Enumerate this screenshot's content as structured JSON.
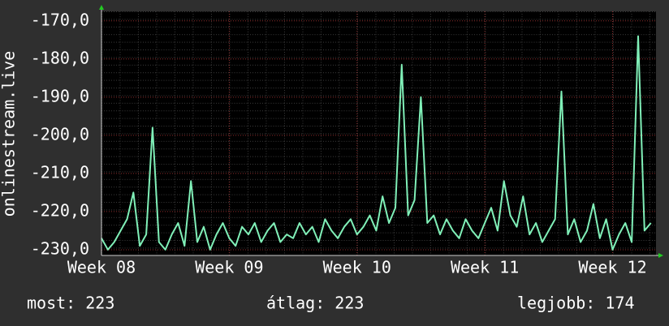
{
  "chart_data": {
    "type": "line",
    "ylabel": "onlinestream.live",
    "x": [
      8.0,
      8.05,
      8.1,
      8.15,
      8.2,
      8.25,
      8.3,
      8.35,
      8.4,
      8.45,
      8.5,
      8.55,
      8.6,
      8.65,
      8.7,
      8.75,
      8.8,
      8.85,
      8.9,
      8.95,
      9.0,
      9.05,
      9.1,
      9.15,
      9.2,
      9.25,
      9.3,
      9.35,
      9.4,
      9.45,
      9.5,
      9.55,
      9.6,
      9.65,
      9.7,
      9.75,
      9.8,
      9.85,
      9.9,
      9.95,
      10.0,
      10.05,
      10.1,
      10.15,
      10.2,
      10.25,
      10.3,
      10.35,
      10.4,
      10.45,
      10.5,
      10.55,
      10.6,
      10.65,
      10.7,
      10.75,
      10.8,
      10.85,
      10.9,
      10.95,
      11.0,
      11.05,
      11.1,
      11.15,
      11.2,
      11.25,
      11.3,
      11.35,
      11.4,
      11.45,
      11.5,
      11.55,
      11.6,
      11.65,
      11.7,
      11.75,
      11.8,
      11.85,
      11.9,
      11.95,
      12.0,
      12.05,
      12.1,
      12.15,
      12.2,
      12.25,
      12.3
    ],
    "series": [
      {
        "color": "#80f0b8",
        "values": [
          -227,
          -230,
          -228,
          -225,
          -222,
          -215,
          -229,
          -226,
          -198,
          -228,
          -230,
          -226,
          -223,
          -229,
          -212,
          -228,
          -224,
          -230,
          -226,
          -223,
          -227,
          -229,
          -224,
          -226,
          -223,
          -228,
          -225,
          -223,
          -228,
          -226,
          -227,
          -223,
          -226,
          -224,
          -228,
          -222,
          -225,
          -227,
          -224,
          -222,
          -226,
          -224,
          -221,
          -225,
          -216,
          -223,
          -219,
          -181.5,
          -221,
          -217,
          -190,
          -223,
          -221,
          -226,
          -222,
          -225,
          -227,
          -222,
          -225,
          -227,
          -223,
          -219,
          -225,
          -212,
          -221,
          -224,
          -216,
          -226,
          -223,
          -228,
          -225,
          -222,
          -188.5,
          -226,
          -222,
          -228,
          -225,
          -218,
          -227,
          -222,
          -230,
          -226,
          -223,
          -228,
          -174,
          -225,
          -223
        ]
      }
    ],
    "xlim": [
      8,
      12.34
    ],
    "xticks": [
      {
        "value": 8,
        "label": "Week 08"
      },
      {
        "value": 9,
        "label": "Week 09"
      },
      {
        "value": 10,
        "label": "Week 10"
      },
      {
        "value": 11,
        "label": "Week 11"
      },
      {
        "value": 12,
        "label": "Week 12"
      }
    ],
    "ylim": [
      -231.5,
      -167.5
    ],
    "yticks": [
      {
        "value": -230,
        "label": "-230,0"
      },
      {
        "value": -220,
        "label": "-220,0"
      },
      {
        "value": -210,
        "label": "-210,0"
      },
      {
        "value": -200,
        "label": "-200,0"
      },
      {
        "value": -190,
        "label": "-190,0"
      },
      {
        "value": -180,
        "label": "-180,0"
      },
      {
        "value": -170,
        "label": "-170,0"
      }
    ],
    "grid": true,
    "footer": [
      "most: 223",
      "átlag: 223",
      "legjobb: 174"
    ]
  }
}
